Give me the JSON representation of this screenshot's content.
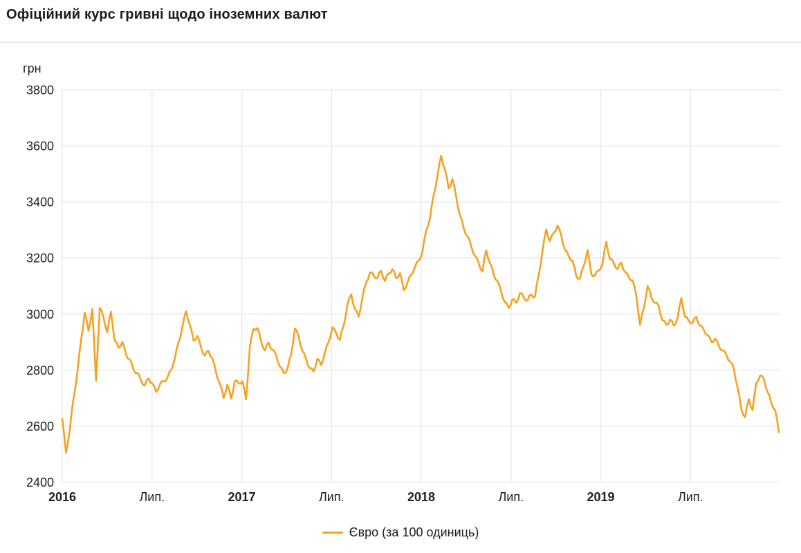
{
  "header": {
    "title": "Офіційний курс гривні щодо іноземних валют"
  },
  "chart": {
    "unit_label": "грн",
    "colors": {
      "line": "#F7A11E",
      "grid": "#E7E7E7",
      "text": "#1E1E1E"
    }
  },
  "chart_data": {
    "type": "line",
    "title": "Офіційний курс гривні щодо іноземних валют",
    "xlabel": "",
    "ylabel": "грн",
    "ylim": [
      2400,
      3800
    ],
    "y_ticks": [
      3800,
      3600,
      3400,
      3200,
      3000,
      2800,
      2600,
      2400
    ],
    "x_ticks": [
      {
        "label": "2016",
        "bold": true
      },
      {
        "label": "Лип.",
        "bold": false
      },
      {
        "label": "2017",
        "bold": true
      },
      {
        "label": "Лип.",
        "bold": false
      },
      {
        "label": "2018",
        "bold": true
      },
      {
        "label": "Лип.",
        "bold": false
      },
      {
        "label": "2019",
        "bold": true
      },
      {
        "label": "Лип.",
        "bold": false
      }
    ],
    "x_start": "2016-01",
    "x_end": "2019-12",
    "grid": true,
    "legend_position": "bottom-center",
    "legend": [
      "Євро (за 100 одиниць)"
    ],
    "series": [
      {
        "name": "Євро (за 100 одиниць)",
        "color": "#F7A11E",
        "values": [
          2625,
          2505,
          2585,
          2700,
          2788,
          2905,
          3005,
          2940,
          3018,
          2763,
          3022,
          2988,
          2935,
          3008,
          2905,
          2880,
          2900,
          2855,
          2838,
          2800,
          2790,
          2762,
          2745,
          2770,
          2752,
          2722,
          2748,
          2760,
          2772,
          2800,
          2842,
          2898,
          2952,
          3010,
          2962,
          2905,
          2922,
          2880,
          2852,
          2868,
          2842,
          2790,
          2752,
          2700,
          2748,
          2698,
          2762,
          2753,
          2760,
          2695,
          2882,
          2948,
          2950,
          2903,
          2870,
          2898,
          2872,
          2853,
          2812,
          2790,
          2802,
          2856,
          2948,
          2920,
          2868,
          2838,
          2806,
          2795,
          2840,
          2818,
          2862,
          2900,
          2952,
          2932,
          2908,
          2958,
          3032,
          3070,
          3018,
          2990,
          3058,
          3112,
          3148,
          3138,
          3128,
          3155,
          3118,
          3145,
          3160,
          3128,
          3146,
          3085,
          3112,
          3140,
          3168,
          3190,
          3222,
          3298,
          3342,
          3425,
          3492,
          3565,
          3515,
          3448,
          3482,
          3418,
          3352,
          3306,
          3278,
          3242,
          3208,
          3180,
          3152,
          3228,
          3182,
          3140,
          3118,
          3078,
          3042,
          3022,
          3053,
          3040,
          3075,
          3060,
          3048,
          3070,
          3062,
          3140,
          3225,
          3302,
          3260,
          3290,
          3315,
          3280,
          3229,
          3205,
          3190,
          3135,
          3127,
          3172,
          3229,
          3142,
          3138,
          3155,
          3180,
          3258,
          3195,
          3183,
          3160,
          3183,
          3150,
          3132,
          3120,
          3065,
          2962,
          3020,
          3100,
          3060,
          3040,
          3027,
          2977,
          2962,
          2980,
          2958,
          2985,
          3057,
          2990,
          2975,
          2968,
          2990,
          2958,
          2943,
          2925,
          2900,
          2912,
          2886,
          2870,
          2854,
          2830,
          2805,
          2738,
          2660,
          2632,
          2696,
          2657,
          2756,
          2780,
          2768,
          2722,
          2682,
          2658,
          2578
        ]
      }
    ]
  }
}
